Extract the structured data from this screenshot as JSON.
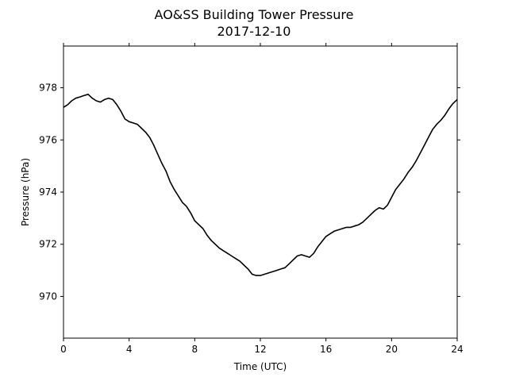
{
  "chart_data": {
    "type": "line",
    "title": "AO&SS Building Tower Pressure",
    "subtitle": "2017-12-10",
    "xlabel": "Time (UTC)",
    "ylabel": "Pressure (hPa)",
    "xlim": [
      0,
      24
    ],
    "ylim": [
      968.4,
      979.6
    ],
    "xticks": [
      0,
      4,
      8,
      12,
      16,
      20,
      24
    ],
    "yticks": [
      970,
      972,
      974,
      976,
      978
    ],
    "grid": false,
    "line_color": "#000000",
    "series": [
      {
        "x": [
          0,
          0.25,
          0.5,
          0.75,
          1.0,
          1.25,
          1.5,
          1.75,
          2.0,
          2.25,
          2.5,
          2.75,
          3.0,
          3.25,
          3.5,
          3.75,
          4.0,
          4.25,
          4.5,
          4.75,
          5.0,
          5.25,
          5.5,
          5.75,
          6.0,
          6.25,
          6.5,
          6.75,
          7.0,
          7.25,
          7.5,
          7.75,
          8.0,
          8.25,
          8.5,
          8.75,
          9.0,
          9.25,
          9.5,
          9.75,
          10.0,
          10.25,
          10.5,
          10.75,
          11.0,
          11.25,
          11.5,
          11.75,
          12.0,
          12.25,
          12.5,
          12.75,
          13.0,
          13.25,
          13.5,
          13.75,
          14.0,
          14.25,
          14.5,
          14.75,
          15.0,
          15.25,
          15.5,
          15.75,
          16.0,
          16.25,
          16.5,
          16.75,
          17.0,
          17.25,
          17.5,
          17.75,
          18.0,
          18.25,
          18.5,
          18.75,
          19.0,
          19.25,
          19.5,
          19.75,
          20.0,
          20.25,
          20.5,
          20.75,
          21.0,
          21.25,
          21.5,
          21.75,
          22.0,
          22.25,
          22.5,
          22.75,
          23.0,
          23.25,
          23.5,
          23.75,
          24.0
        ],
        "y": [
          977.25,
          977.35,
          977.5,
          977.6,
          977.65,
          977.7,
          977.75,
          977.6,
          977.5,
          977.45,
          977.55,
          977.6,
          977.55,
          977.35,
          977.1,
          976.8,
          976.7,
          976.65,
          976.6,
          976.45,
          976.3,
          976.1,
          975.8,
          975.45,
          975.1,
          974.8,
          974.4,
          974.1,
          973.85,
          973.6,
          973.45,
          973.2,
          972.9,
          972.75,
          972.6,
          972.35,
          972.15,
          972.0,
          971.85,
          971.75,
          971.65,
          971.55,
          971.45,
          971.35,
          971.2,
          971.05,
          970.85,
          970.8,
          970.8,
          970.85,
          970.9,
          970.95,
          971.0,
          971.05,
          971.1,
          971.25,
          971.4,
          971.55,
          971.6,
          971.55,
          971.5,
          971.65,
          971.9,
          972.1,
          972.3,
          972.4,
          972.5,
          972.55,
          972.6,
          972.65,
          972.65,
          972.7,
          972.75,
          972.85,
          973.0,
          973.15,
          973.3,
          973.4,
          973.35,
          973.5,
          973.8,
          974.1,
          974.3,
          974.5,
          974.75,
          974.95,
          975.2,
          975.5,
          975.8,
          976.1,
          976.4,
          976.6,
          976.75,
          976.95,
          977.2,
          977.4,
          977.55
        ]
      }
    ]
  }
}
